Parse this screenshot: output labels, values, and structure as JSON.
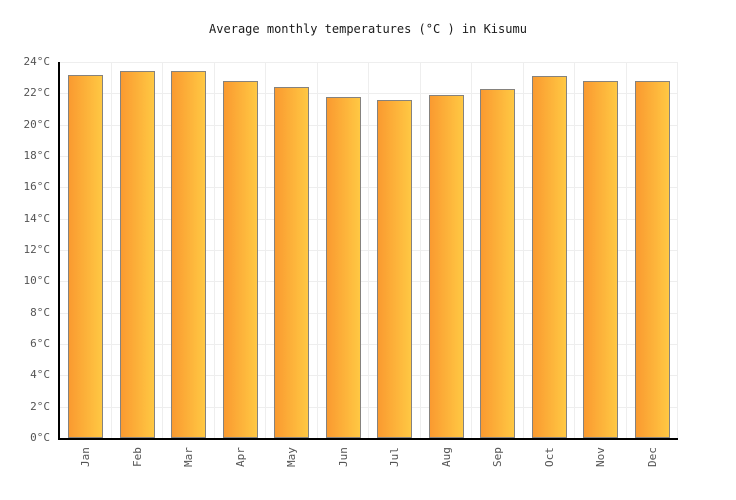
{
  "title": "Average monthly temperatures (°C ) in Kisumu",
  "chart_data": {
    "type": "bar",
    "title": "Average monthly temperatures (°C ) in Kisumu",
    "categories": [
      "Jan",
      "Feb",
      "Mar",
      "Apr",
      "May",
      "Jun",
      "Jul",
      "Aug",
      "Sep",
      "Oct",
      "Nov",
      "Dec"
    ],
    "values": [
      23.2,
      23.4,
      23.4,
      22.8,
      22.4,
      21.8,
      21.6,
      21.9,
      22.3,
      23.1,
      22.8,
      22.8
    ],
    "xlabel": "",
    "ylabel": "",
    "ylim": [
      0,
      24
    ],
    "ytick_step": 2,
    "ytick_suffix": "°C",
    "x_tick_rotation": -90,
    "grid": true,
    "legend": "none",
    "colors": {
      "bar_gradient_left": "#fa9a30",
      "bar_gradient_right": "#ffc843",
      "bar_border": "#85827e",
      "axis": "#000000",
      "gridline": "#eeeeee",
      "tick_label": "#545454",
      "title": "#1a1a1a"
    }
  }
}
